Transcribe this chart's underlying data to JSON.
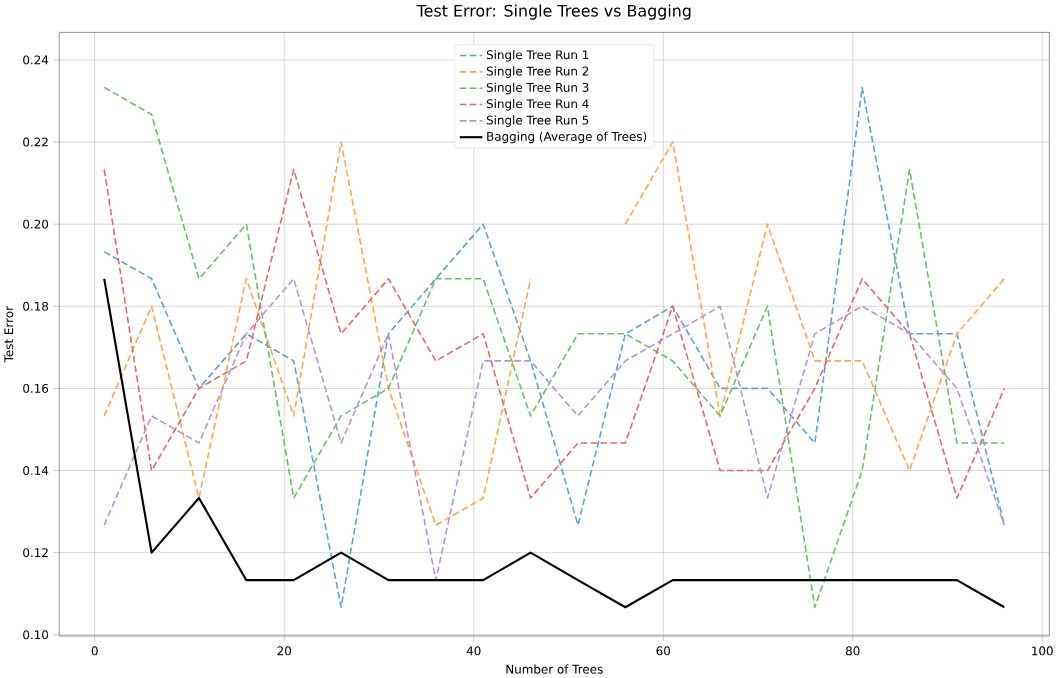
{
  "chart_data": {
    "type": "line",
    "title": "Test Error: Single Trees vs Bagging",
    "xlabel": "Number of Trees",
    "ylabel": "Test Error",
    "x": [
      1,
      6,
      11,
      16,
      21,
      26,
      31,
      36,
      41,
      46,
      51,
      56,
      61,
      66,
      71,
      76,
      81,
      86,
      91,
      96
    ],
    "series": [
      {
        "name": "Single Tree Run 1",
        "color": "#62a0cb",
        "line_style": "dashed",
        "values": [
          0.1933,
          0.1867,
          0.16,
          0.1733,
          0.1667,
          0.1067,
          0.1733,
          0.1867,
          0.2,
          0.1667,
          0.1267,
          0.1733,
          0.18,
          0.16,
          0.16,
          0.1467,
          0.2333,
          0.1733,
          0.1733,
          0.1267
        ]
      },
      {
        "name": "Single Tree Run 2",
        "color": "#ffa556",
        "line_style": "dashed",
        "values": [
          0.1533,
          0.18,
          0.1333,
          0.1867,
          0.1533,
          0.22,
          0.16,
          0.1267,
          0.1333,
          0.1867,
          null,
          0.2,
          0.22,
          0.1533,
          0.2,
          0.1667,
          0.1667,
          0.14,
          0.1733,
          0.1867
        ]
      },
      {
        "name": "Single Tree Run 3",
        "color": "#6bbc6b",
        "line_style": "dashed",
        "values": [
          0.2333,
          0.2267,
          0.1867,
          0.2,
          0.1333,
          0.1533,
          0.16,
          0.1867,
          0.1867,
          0.1533,
          0.1733,
          0.1733,
          0.1667,
          0.1533,
          0.18,
          0.1067,
          0.14,
          0.2133,
          0.1467,
          0.1467
        ]
      },
      {
        "name": "Single Tree Run 4",
        "color": "#e26868",
        "line_style": "dashed",
        "values": [
          0.2133,
          0.14,
          0.16,
          0.1667,
          0.2133,
          0.1733,
          0.1867,
          0.1667,
          0.1733,
          0.1333,
          0.1467,
          0.1467,
          0.18,
          0.14,
          0.14,
          0.16,
          0.1867,
          0.1733,
          0.1333,
          0.16
        ]
      },
      {
        "name": "Single Tree Run 5",
        "color": "#b494d1",
        "line_style": "dashed",
        "values": [
          0.1267,
          0.1533,
          0.1467,
          0.1733,
          0.1867,
          0.1467,
          0.1733,
          0.1133,
          0.1667,
          0.1667,
          0.1533,
          0.1667,
          0.1733,
          0.18,
          0.1333,
          0.1733,
          0.18,
          0.1733,
          0.16,
          0.1267
        ]
      },
      {
        "name": "Bagging (Average of Trees)",
        "color": "#000000",
        "line_style": "solid",
        "values": [
          0.1867,
          0.12,
          0.1333,
          0.1133,
          0.1133,
          0.12,
          0.1133,
          0.1133,
          0.1133,
          0.12,
          0.1133,
          0.1067,
          0.1133,
          0.1133,
          0.1133,
          0.1133,
          0.1133,
          0.1133,
          0.1133,
          0.1067
        ]
      }
    ],
    "xlim": [
      -3.75,
      100.75
    ],
    "ylim": [
      0.0997,
      0.2467
    ],
    "xticks": [
      0,
      20,
      40,
      60,
      80,
      100
    ],
    "yticks": [
      {
        "value": 0.1,
        "label": "0.10"
      },
      {
        "value": 0.12,
        "label": "0.12"
      },
      {
        "value": 0.14,
        "label": "0.14"
      },
      {
        "value": 0.16,
        "label": "0.16"
      },
      {
        "value": 0.18,
        "label": "0.18"
      },
      {
        "value": 0.2,
        "label": "0.20"
      },
      {
        "value": 0.22,
        "label": "0.22"
      },
      {
        "value": 0.24,
        "label": "0.24"
      }
    ],
    "grid": true,
    "legend": "top",
    "marker": "none"
  }
}
